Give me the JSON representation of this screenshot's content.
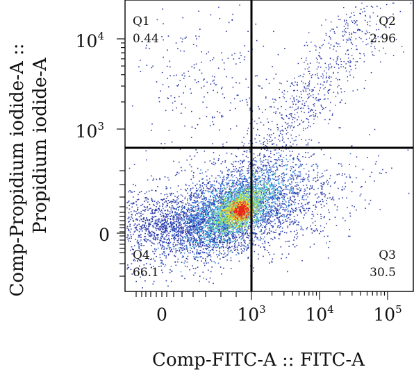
{
  "chart_data": {
    "type": "scatter",
    "title": "",
    "xlabel": "Comp-FITC-A :: FITC-A",
    "ylabel_line1": "Comp-Propidium iodide-A ::",
    "ylabel_line2": "Propidium iodide-A",
    "x_scale": "biexponential",
    "y_scale": "biexponential",
    "x_ticks": [
      {
        "base": "0",
        "exp": ""
      },
      {
        "base": "10",
        "exp": "3"
      },
      {
        "base": "10",
        "exp": "4"
      },
      {
        "base": "10",
        "exp": "5"
      }
    ],
    "y_ticks": [
      {
        "base": "0",
        "exp": ""
      },
      {
        "base": "10",
        "exp": "3"
      },
      {
        "base": "10",
        "exp": "4"
      }
    ],
    "gate": {
      "x": 1000,
      "y": 700
    },
    "quadrants": [
      {
        "name": "Q1",
        "value": "0.44",
        "position": "top-left"
      },
      {
        "name": "Q2",
        "value": "2.96",
        "position": "top-right"
      },
      {
        "name": "Q3",
        "value": "30.5",
        "position": "bottom-right"
      },
      {
        "name": "Q4",
        "value": "66.1",
        "position": "bottom-left"
      }
    ],
    "density_colors": [
      "#2b39a8",
      "#3f78d8",
      "#44c8e6",
      "#7fdc6a",
      "#e8e83a",
      "#f08a2a",
      "#e8231c"
    ]
  }
}
